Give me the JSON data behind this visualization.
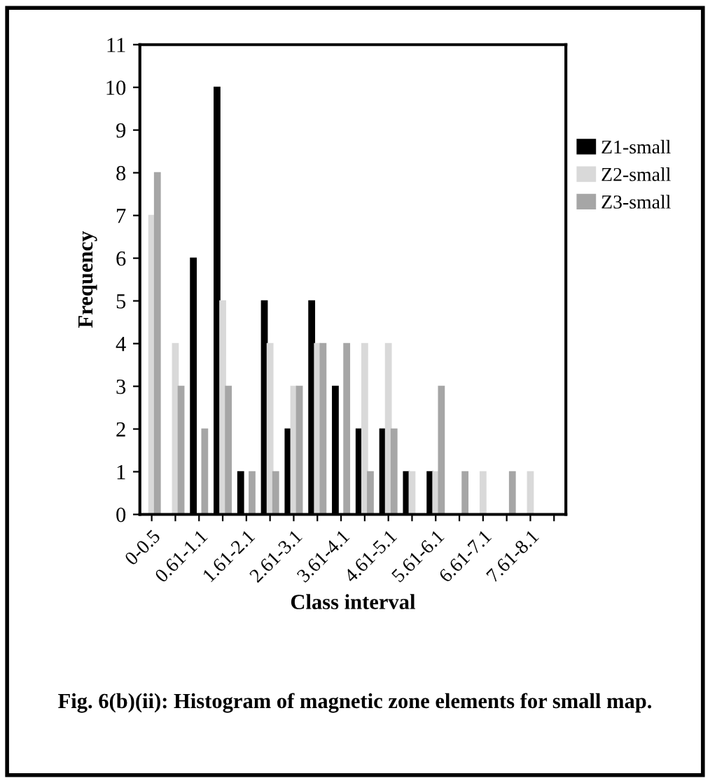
{
  "chart_data": {
    "type": "bar",
    "xlabel": "Class interval",
    "ylabel": "Frequency",
    "categories": [
      "0-0.5",
      null,
      "0.61-1.1",
      null,
      "1.61-2.1",
      null,
      "2.61-3.1",
      null,
      "3.61-4.1",
      null,
      "4.61-5.1",
      null,
      "5.61-6.1",
      null,
      "6.61-7.1",
      null,
      "7.61-8.1",
      null
    ],
    "series": [
      {
        "name": "Z1-small",
        "color": "#000000",
        "values": [
          0,
          0,
          6,
          10,
          1,
          5,
          2,
          5,
          3,
          2,
          2,
          1,
          1,
          0,
          0,
          0,
          0,
          0
        ]
      },
      {
        "name": "Z2-small",
        "color": "#d9d9d9",
        "values": [
          7,
          4,
          0,
          5,
          0,
          4,
          3,
          4,
          0,
          4,
          4,
          1,
          1,
          0,
          1,
          0,
          1,
          0
        ]
      },
      {
        "name": "Z3-small",
        "color": "#a6a6a6",
        "values": [
          8,
          3,
          2,
          3,
          1,
          1,
          3,
          4,
          4,
          1,
          2,
          0,
          3,
          1,
          0,
          1,
          0,
          0
        ]
      }
    ],
    "ylim": [
      0,
      11
    ],
    "yticks": [
      0,
      1,
      2,
      3,
      4,
      5,
      6,
      7,
      8,
      9,
      10,
      11
    ],
    "legend": "right",
    "annotations": [
      "Fig. 6(b)(ii): Histogram of magnetic zone elements for small map."
    ]
  }
}
